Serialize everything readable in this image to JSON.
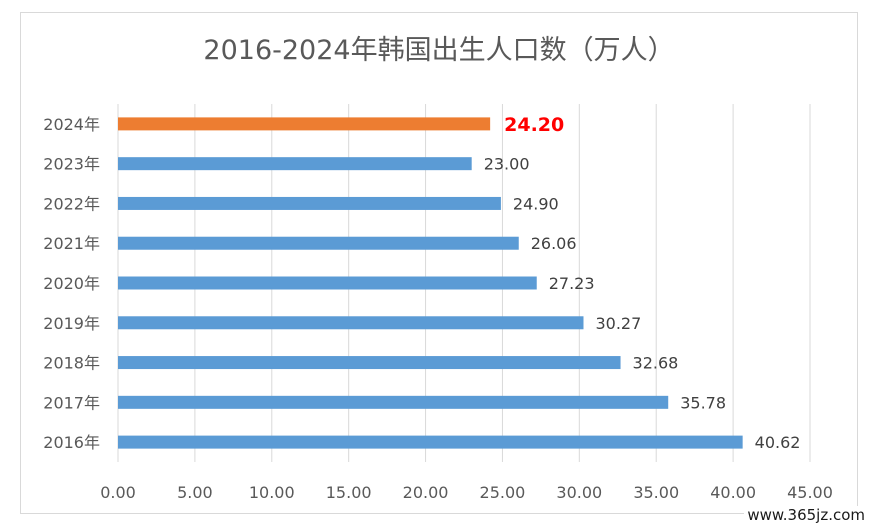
{
  "chart_data": {
    "type": "bar",
    "orientation": "horizontal",
    "title": "2016-2024年韩国出生人口数（万人）",
    "categories": [
      "2024年",
      "2023年",
      "2022年",
      "2021年",
      "2020年",
      "2019年",
      "2018年",
      "2017年",
      "2016年"
    ],
    "values": [
      24.2,
      23.0,
      24.9,
      26.06,
      27.23,
      30.27,
      32.68,
      35.78,
      40.62
    ],
    "value_labels": [
      "24.20",
      "23.00",
      "24.90",
      "26.06",
      "27.23",
      "30.27",
      "32.68",
      "35.78",
      "40.62"
    ],
    "highlight_index": 0,
    "xlim": [
      0,
      45
    ],
    "x_ticks": [
      "0.00",
      "5.00",
      "10.00",
      "15.00",
      "20.00",
      "25.00",
      "30.00",
      "35.00",
      "40.00",
      "45.00"
    ],
    "grid": "vertical",
    "legend": "none",
    "colors": {
      "bar": "#5b9bd5",
      "highlight_bar": "#ed7d31",
      "highlight_label": "#ff0000",
      "label": "#404040",
      "tick": "#595959",
      "grid": "#d9d9d9"
    }
  },
  "watermark": "www.365jz.com"
}
